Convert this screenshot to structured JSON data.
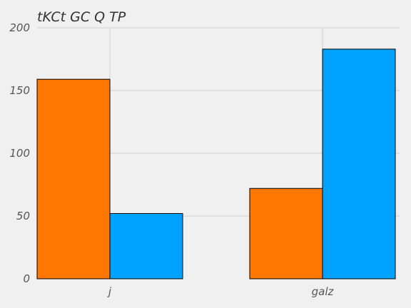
{
  "chart_data": {
    "type": "bar",
    "title": "tKCt GC Q  TP",
    "categories": [
      "j",
      "galz"
    ],
    "series": [
      {
        "values": [
          159,
          72
        ],
        "color": "#ff7700"
      },
      {
        "values": [
          52,
          183
        ],
        "color": "#00a2ff"
      }
    ],
    "xlabel": "",
    "ylabel": "",
    "ylim": [
      0,
      200
    ],
    "yticks": [
      0,
      50,
      100,
      150,
      200
    ],
    "grid": true,
    "legend": "none"
  }
}
